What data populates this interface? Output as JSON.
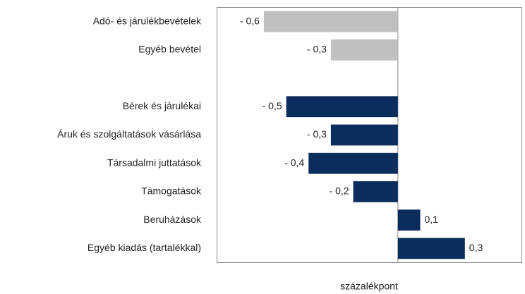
{
  "chart_data": {
    "type": "hbar",
    "xlabel": "százalékpont",
    "categories": [
      "Adó- és járulékbevételek",
      "Egyéb bevétel",
      null,
      "Bérek és járulékai",
      "Áruk és szolgáltatások vásárlása",
      "Társadalmi juttatások",
      "Támogatások",
      "Beruházások",
      "Egyéb kiadás (tartalékkal)"
    ],
    "values": [
      -0.6,
      -0.3,
      null,
      -0.5,
      -0.3,
      -0.4,
      -0.2,
      0.1,
      0.3
    ],
    "value_labels": [
      "- 0,6",
      "- 0,3",
      null,
      "- 0,5",
      "- 0,3",
      "- 0,4",
      "- 0,2",
      "0,1",
      "0,3"
    ],
    "colors": [
      "#c0c0c0",
      "#c0c0c0",
      null,
      "#0a2d5e",
      "#0a2d5e",
      "#0a2d5e",
      "#0a2d5e",
      "#0a2d5e",
      "#0a2d5e"
    ],
    "xlim": [
      -0.81,
      0.555
    ]
  }
}
